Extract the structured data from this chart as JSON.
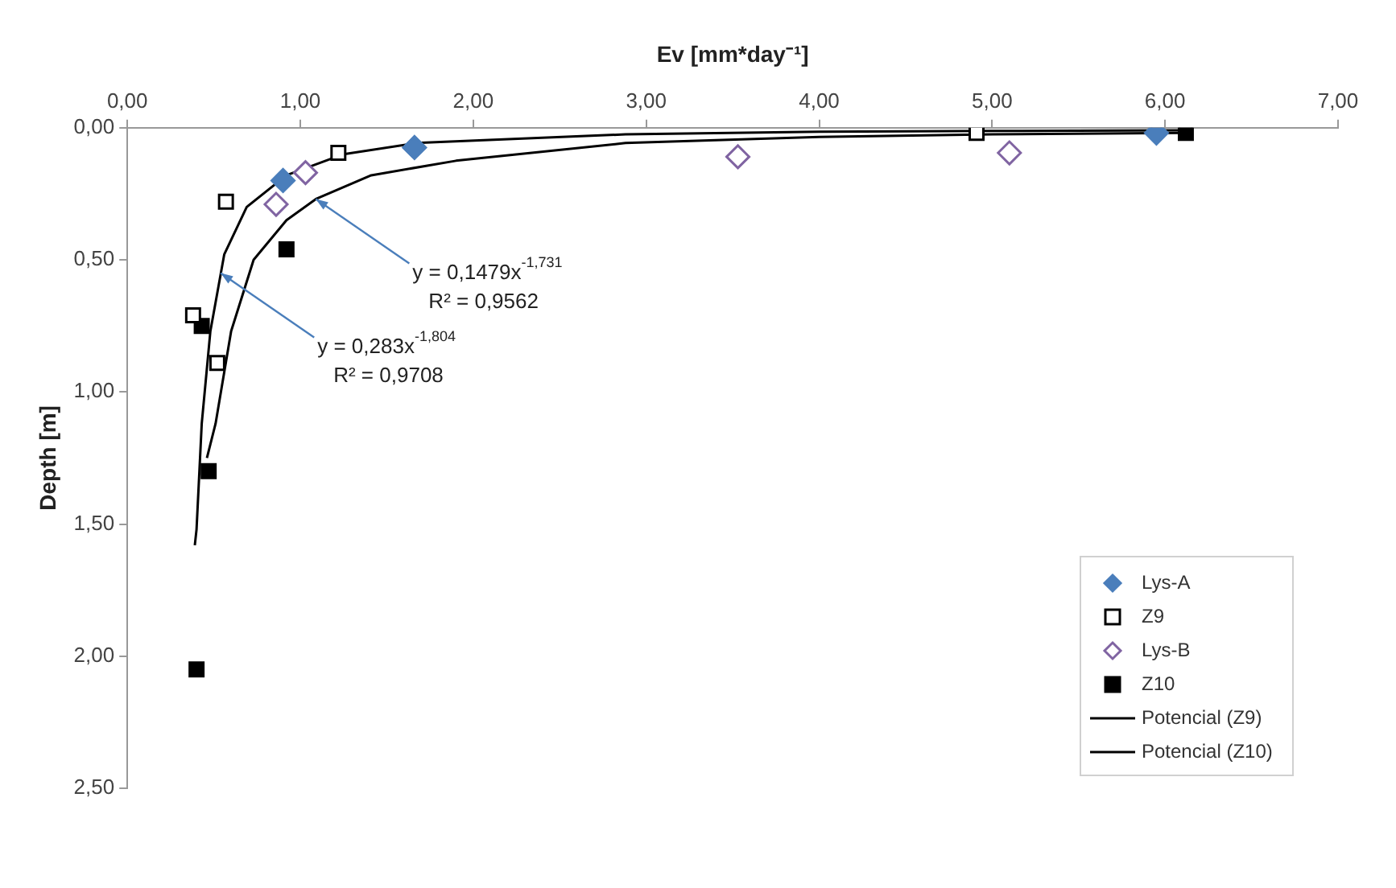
{
  "chart_data": {
    "type": "scatter",
    "xlabel": "Ev [mm*day⁻¹]",
    "ylabel": "Depth [m]",
    "xlim": [
      0,
      7
    ],
    "xticks": [
      {
        "value": 0,
        "label": "0,00"
      },
      {
        "value": 1,
        "label": "1,00"
      },
      {
        "value": 2,
        "label": "2,00"
      },
      {
        "value": 3,
        "label": "3,00"
      },
      {
        "value": 4,
        "label": "4,00"
      },
      {
        "value": 5,
        "label": "5,00"
      },
      {
        "value": 6,
        "label": "6,00"
      },
      {
        "value": 7,
        "label": "7,00"
      }
    ],
    "ylim": [
      2.5,
      0
    ],
    "yticks": [
      {
        "value": 0,
        "label": "0,00"
      },
      {
        "value": 0.5,
        "label": "0,50"
      },
      {
        "value": 1,
        "label": "1,00"
      },
      {
        "value": 1.5,
        "label": "1,50"
      },
      {
        "value": 2,
        "label": "2,00"
      },
      {
        "value": 2.5,
        "label": "2,50"
      }
    ],
    "grid": false,
    "legend": "bottom right",
    "series": [
      {
        "name": "Lys-A",
        "type": "scatter",
        "marker": "diamond",
        "color": "#4a7ebb",
        "x": [
          0.9,
          1.66,
          5.95
        ],
        "values": [
          0.2,
          0.075,
          0.02
        ]
      },
      {
        "name": "Z9",
        "type": "scatter",
        "marker": "square",
        "color": "#000000",
        "x": [
          1.22,
          0.57,
          0.38,
          0.52,
          4.91
        ],
        "values": [
          0.095,
          0.28,
          0.71,
          0.89,
          0.02
        ]
      },
      {
        "name": "Lys-B",
        "type": "scatter",
        "marker": "diamond",
        "color": "#8064a2",
        "x": [
          1.03,
          0.86,
          3.53,
          5.1
        ],
        "values": [
          0.17,
          0.29,
          0.11,
          0.095
        ]
      },
      {
        "name": "Z10",
        "type": "scatter",
        "marker": "square",
        "color": "#000000",
        "x": [
          0.92,
          0.43,
          0.47,
          0.4,
          6.12
        ],
        "values": [
          0.46,
          0.75,
          1.3,
          2.05,
          0.02
        ]
      },
      {
        "name": "Potencial (Z9)",
        "type": "line",
        "marker": "none",
        "color": "#000000",
        "x": [
          0.39,
          0.4,
          0.43,
          0.48,
          0.56,
          0.69,
          0.92,
          1.25,
          1.67,
          2.88,
          4.0,
          5.0,
          6.1
        ],
        "values": [
          1.58,
          1.52,
          1.12,
          0.77,
          0.48,
          0.3,
          0.18,
          0.1,
          0.058,
          0.025,
          0.015,
          0.012,
          0.01
        ]
      },
      {
        "name": "Potencial (Z10)",
        "type": "line",
        "marker": "none",
        "color": "#000000",
        "x": [
          0.46,
          0.51,
          0.6,
          0.73,
          0.92,
          1.09,
          1.41,
          1.9,
          2.88,
          4.0,
          5.0,
          6.1
        ],
        "values": [
          1.25,
          1.12,
          0.77,
          0.5,
          0.35,
          0.27,
          0.18,
          0.125,
          0.058,
          0.035,
          0.025,
          0.02
        ]
      }
    ],
    "annotations": [
      {
        "text": "y = 0,1479x$^{-1,731}$",
        "x": 1.09,
        "y": 0.27
      },
      "R² = 0,9562",
      {
        "text": "y = 0,283x$^{-1,804}$",
        "x": 0.54,
        "y": 0.55
      },
      "R² = 0,9708"
    ]
  }
}
